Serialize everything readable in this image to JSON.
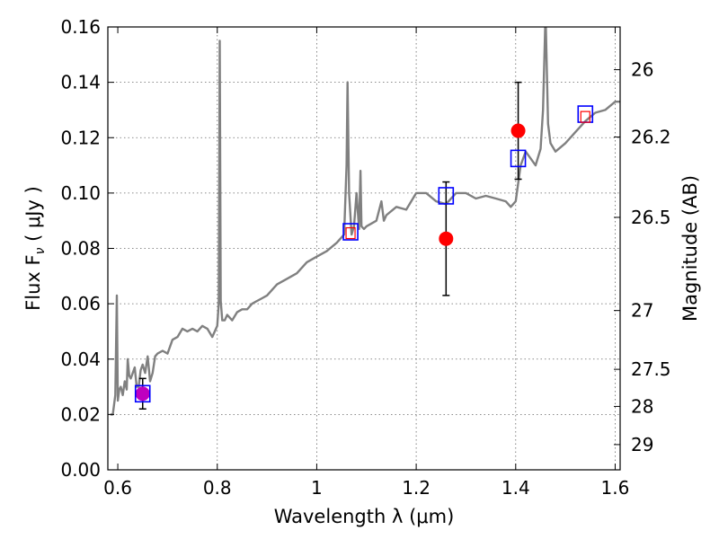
{
  "chart_data": {
    "type": "scatter",
    "title": "",
    "xlabel_text": "Wavelength  λ (μm)",
    "ylabel_text": "Flux  F",
    "ylabel_sub": "ν",
    "ylabel_unit": "  ( μJy )",
    "y2label": "Magnitude (AB)",
    "xlim": [
      0.58,
      1.61
    ],
    "ylim": [
      0.0,
      0.16
    ],
    "grid": true,
    "x_ticks": [
      0.6,
      0.8,
      1.0,
      1.2,
      1.4,
      1.6
    ],
    "x_tick_labels": [
      "0.6",
      "0.8",
      "1",
      "1.2",
      "1.4",
      "1.6"
    ],
    "y_ticks": [
      0.0,
      0.02,
      0.04,
      0.06,
      0.08,
      0.1,
      0.12,
      0.14,
      0.16
    ],
    "y_tick_labels": [
      "0.00",
      "0.02",
      "0.04",
      "0.06",
      "0.08",
      "0.10",
      "0.12",
      "0.14",
      "0.16"
    ],
    "y2_ticks": [
      {
        "mag": 26,
        "label": "26"
      },
      {
        "mag": 26.2,
        "label": "26.2"
      },
      {
        "mag": 26.5,
        "label": "26.5"
      },
      {
        "mag": 27,
        "label": "27"
      },
      {
        "mag": 27.5,
        "label": "27.5"
      },
      {
        "mag": 28,
        "label": "28"
      },
      {
        "mag": 29,
        "label": "29"
      }
    ],
    "colors": {
      "spectrum": "#808080",
      "observed": "#ff0000",
      "model_box": "#0000ff",
      "magenta_point": "#bf00bf",
      "errorbar": "#000000"
    },
    "series": [
      {
        "kind": "spectrum",
        "x": [
          0.585,
          0.59,
          0.595,
          0.598,
          0.6,
          0.603,
          0.606,
          0.61,
          0.614,
          0.618,
          0.62,
          0.623,
          0.626,
          0.63,
          0.634,
          0.638,
          0.642,
          0.646,
          0.65,
          0.655,
          0.66,
          0.665,
          0.67,
          0.675,
          0.68,
          0.69,
          0.7,
          0.71,
          0.72,
          0.73,
          0.74,
          0.75,
          0.76,
          0.77,
          0.78,
          0.79,
          0.8,
          0.803,
          0.805,
          0.807,
          0.81,
          0.815,
          0.82,
          0.83,
          0.84,
          0.85,
          0.86,
          0.87,
          0.88,
          0.89,
          0.9,
          0.92,
          0.94,
          0.96,
          0.98,
          1.0,
          1.02,
          1.04,
          1.055,
          1.06,
          1.062,
          1.065,
          1.07,
          1.075,
          1.08,
          1.085,
          1.088,
          1.09,
          1.095,
          1.1,
          1.12,
          1.13,
          1.135,
          1.14,
          1.16,
          1.18,
          1.2,
          1.22,
          1.24,
          1.26,
          1.28,
          1.3,
          1.32,
          1.34,
          1.36,
          1.38,
          1.39,
          1.4,
          1.41,
          1.42,
          1.44,
          1.45,
          1.455,
          1.46,
          1.465,
          1.47,
          1.48,
          1.5,
          1.52,
          1.54,
          1.56,
          1.58,
          1.6,
          1.61
        ],
        "y": [
          0.02,
          0.02,
          0.027,
          0.063,
          0.025,
          0.029,
          0.03,
          0.027,
          0.032,
          0.029,
          0.04,
          0.034,
          0.033,
          0.035,
          0.037,
          0.03,
          0.03,
          0.036,
          0.038,
          0.035,
          0.041,
          0.032,
          0.035,
          0.041,
          0.042,
          0.043,
          0.042,
          0.047,
          0.048,
          0.051,
          0.05,
          0.051,
          0.05,
          0.052,
          0.051,
          0.048,
          0.052,
          0.06,
          0.155,
          0.061,
          0.054,
          0.054,
          0.056,
          0.054,
          0.057,
          0.058,
          0.058,
          0.06,
          0.061,
          0.062,
          0.063,
          0.067,
          0.069,
          0.071,
          0.075,
          0.077,
          0.079,
          0.082,
          0.085,
          0.11,
          0.14,
          0.1,
          0.085,
          0.088,
          0.1,
          0.087,
          0.108,
          0.088,
          0.087,
          0.088,
          0.09,
          0.097,
          0.09,
          0.092,
          0.095,
          0.094,
          0.1,
          0.1,
          0.097,
          0.096,
          0.1,
          0.1,
          0.098,
          0.099,
          0.098,
          0.097,
          0.095,
          0.097,
          0.11,
          0.115,
          0.11,
          0.116,
          0.13,
          0.165,
          0.125,
          0.118,
          0.115,
          0.118,
          0.122,
          0.126,
          0.129,
          0.13,
          0.133,
          0.133
        ]
      },
      {
        "kind": "observed",
        "name": "",
        "x": [
          0.65,
          1.26,
          1.405
        ],
        "y": [
          0.0275,
          0.0835,
          0.1225
        ],
        "yerr_low": [
          0.0055,
          0.0205,
          0.0175
        ],
        "yerr_high": [
          0.0055,
          0.0205,
          0.0175
        ]
      },
      {
        "kind": "model",
        "name": "",
        "x": [
          0.65,
          1.068,
          1.26,
          1.405,
          1.54
        ],
        "y": [
          0.0275,
          0.086,
          0.099,
          0.1125,
          0.1285
        ]
      },
      {
        "kind": "model-inner",
        "name": "",
        "x": [
          1.068,
          1.54
        ],
        "y": [
          0.0855,
          0.1275
        ]
      }
    ]
  }
}
